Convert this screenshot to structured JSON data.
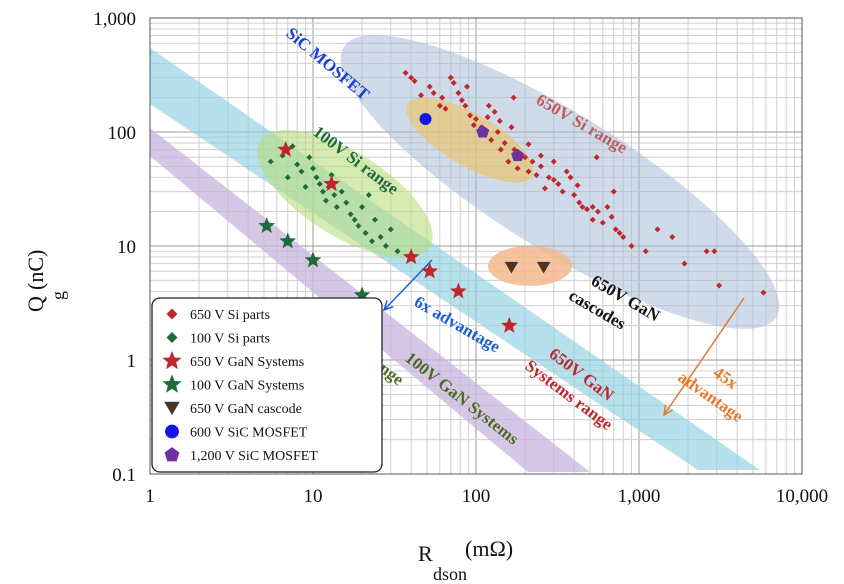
{
  "chart_data": {
    "type": "scatter",
    "x_scale": "log",
    "y_scale": "log",
    "xlim": [
      1,
      10000
    ],
    "ylim": [
      0.1,
      1000
    ],
    "xlabel": "R",
    "xlabel_sub": "dson",
    "xlabel_unit": "(mΩ)",
    "ylabel": "Q",
    "ylabel_sub": "g",
    "ylabel_unit": "(nC)",
    "grid": true,
    "legend_position": "bottom-left",
    "x_ticks": [
      "1",
      "10",
      "100",
      "1,000",
      "10,000"
    ],
    "x_tick_values": [
      1,
      10,
      100,
      1000,
      10000
    ],
    "y_ticks": [
      "0.1",
      "1",
      "10",
      "100",
      "1,000"
    ],
    "y_tick_values": [
      0.1,
      1,
      10,
      100,
      1000
    ],
    "series": [
      {
        "name": "650 V Si parts",
        "marker": "diamond",
        "color": "#c0272d",
        "points": [
          [
            37,
            330
          ],
          [
            40,
            300
          ],
          [
            42,
            280
          ],
          [
            46,
            210
          ],
          [
            52,
            250
          ],
          [
            55,
            220
          ],
          [
            60,
            170
          ],
          [
            62,
            200
          ],
          [
            65,
            160
          ],
          [
            70,
            300
          ],
          [
            73,
            270
          ],
          [
            78,
            220
          ],
          [
            82,
            190
          ],
          [
            86,
            170
          ],
          [
            88,
            250
          ],
          [
            92,
            140
          ],
          [
            97,
            115
          ],
          [
            100,
            130
          ],
          [
            108,
            110
          ],
          [
            112,
            95
          ],
          [
            118,
            135
          ],
          [
            124,
            85
          ],
          [
            130,
            150
          ],
          [
            136,
            100
          ],
          [
            142,
            70
          ],
          [
            150,
            80
          ],
          [
            158,
            55
          ],
          [
            165,
            110
          ],
          [
            172,
            70
          ],
          [
            180,
            48
          ],
          [
            190,
            60
          ],
          [
            200,
            60
          ],
          [
            210,
            45
          ],
          [
            222,
            55
          ],
          [
            235,
            42
          ],
          [
            250,
            50
          ],
          [
            265,
            32
          ],
          [
            280,
            40
          ],
          [
            300,
            38
          ],
          [
            320,
            35
          ],
          [
            340,
            30
          ],
          [
            360,
            45
          ],
          [
            380,
            40
          ],
          [
            400,
            28
          ],
          [
            420,
            34
          ],
          [
            450,
            22
          ],
          [
            480,
            21
          ],
          [
            520,
            22
          ],
          [
            560,
            20
          ],
          [
            600,
            16
          ],
          [
            640,
            22
          ],
          [
            680,
            18
          ],
          [
            720,
            14
          ],
          [
            760,
            13
          ],
          [
            800,
            12
          ],
          [
            900,
            10
          ],
          [
            1100,
            9
          ],
          [
            1300,
            14
          ],
          [
            1600,
            12
          ],
          [
            1900,
            7
          ],
          [
            2600,
            9
          ],
          [
            2900,
            9
          ],
          [
            3100,
            4.5
          ],
          [
            5800,
            3.9
          ],
          [
            170,
            200
          ],
          [
            210,
            78
          ],
          [
            250,
            62
          ],
          [
            120,
            170
          ],
          [
            140,
            125
          ],
          [
            300,
            55
          ],
          [
            430,
            24
          ],
          [
            520,
            17
          ],
          [
            700,
            30
          ],
          [
            550,
            60
          ]
        ]
      },
      {
        "name": "100 V Si parts",
        "marker": "diamond",
        "color": "#1d6b3a",
        "points": [
          [
            5.5,
            55
          ],
          [
            6.5,
            62
          ],
          [
            7,
            40
          ],
          [
            7.5,
            75
          ],
          [
            8,
            52
          ],
          [
            8.5,
            45
          ],
          [
            9,
            33
          ],
          [
            9.5,
            60
          ],
          [
            10,
            48
          ],
          [
            10.5,
            40
          ],
          [
            11,
            35
          ],
          [
            11.5,
            30
          ],
          [
            12,
            25
          ],
          [
            12.5,
            33
          ],
          [
            13,
            42
          ],
          [
            13.5,
            28
          ],
          [
            14,
            22
          ],
          [
            15,
            30
          ],
          [
            16,
            24
          ],
          [
            17,
            19
          ],
          [
            18,
            17
          ],
          [
            19,
            15
          ],
          [
            20,
            22
          ],
          [
            21,
            13
          ],
          [
            22,
            28
          ],
          [
            23,
            11
          ],
          [
            24,
            17
          ],
          [
            26,
            12
          ],
          [
            28,
            10
          ],
          [
            30,
            14
          ],
          [
            33,
            9
          ]
        ]
      },
      {
        "name": "650 V GaN Systems",
        "marker": "star",
        "color": "#c0272d",
        "points": [
          [
            6.8,
            70
          ],
          [
            13,
            35
          ],
          [
            40,
            8
          ],
          [
            52,
            6
          ],
          [
            78,
            4
          ],
          [
            160,
            2
          ]
        ]
      },
      {
        "name": "100 V GaN Systems",
        "marker": "star",
        "color": "#1d6b3a",
        "points": [
          [
            5.2,
            15
          ],
          [
            7,
            11
          ],
          [
            10,
            7.5
          ],
          [
            20,
            3.7
          ]
        ]
      },
      {
        "name": "650 V GaN cascode",
        "marker": "triangle-down",
        "color": "#4a3422",
        "points": [
          [
            165,
            6.5
          ],
          [
            260,
            6.5
          ]
        ]
      },
      {
        "name": "600 V SiC MOSFET",
        "marker": "circle",
        "color": "#1414e6",
        "points": [
          [
            49,
            130
          ]
        ]
      },
      {
        "name": "1,200 V SiC MOSFET",
        "marker": "pentagon",
        "color": "#7030a0",
        "points": [
          [
            110,
            100
          ],
          [
            180,
            62
          ]
        ]
      }
    ],
    "regions": [
      {
        "name": "650V Si range",
        "color": "#aabdd9"
      },
      {
        "name": "100V Si range",
        "color": "#b9de7e"
      },
      {
        "name": "SiC MOSFET",
        "color": "#efc25c"
      },
      {
        "name": "650V GaN cascodes",
        "color": "#f3b98d"
      },
      {
        "name": "650V GaN Systems range",
        "color": "#8fcfe0"
      },
      {
        "name": "100V GaN Systems range",
        "color": "#c9b4de"
      }
    ],
    "annotations": [
      {
        "text": "6x advantage",
        "color": "#1a5fd6"
      },
      {
        "text": "45x advantage",
        "color": "#e8782a"
      }
    ]
  },
  "labels": {
    "sic": "SiC MOSFET",
    "si650": "650V Si range",
    "si100": "100V Si range",
    "cascode_line1": "650V GaN",
    "cascode_line2": "cascodes",
    "adv6": "6x advantage",
    "gan650_line1": "650V GaN",
    "gan650_line2": "Systems range",
    "gan100_line1": "100V GaN Systems",
    "gan100_line2": "range",
    "adv45_line1": "45x",
    "adv45_line2": "advantage"
  },
  "colors": {
    "si650": "#c05b5b",
    "si100": "#1d6b3a",
    "sic": "#1a3fd6",
    "cascode": "#111111",
    "adv6": "#1a5fd6",
    "gan650": "#c0272d",
    "gan100": "#4b6b22",
    "adv45": "#e8782a"
  }
}
